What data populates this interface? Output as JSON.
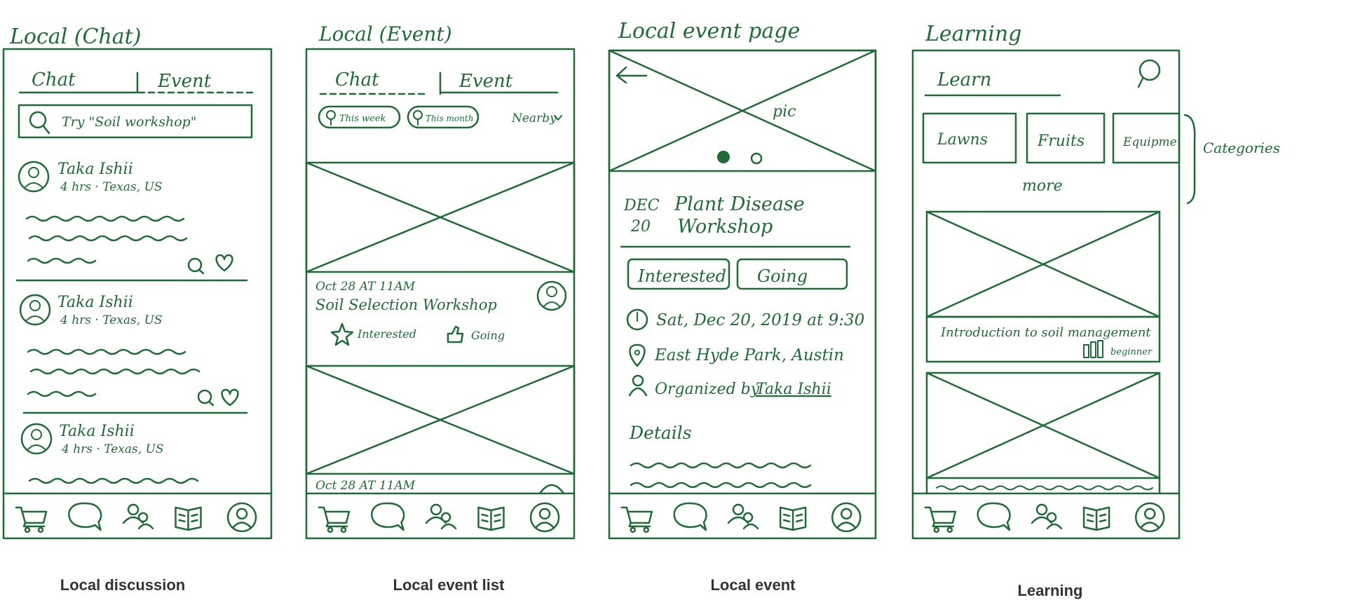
{
  "screens": [
    {
      "title": "Local (Chat)",
      "caption": "Local discussion",
      "tabs": [
        "Chat",
        "Event"
      ],
      "search_placeholder": "Try \"Soil workshop\"",
      "posts": [
        {
          "name": "Taka Ishii",
          "meta": "4 hrs · Texas, US"
        },
        {
          "name": "Taka Ishii",
          "meta": "4 hrs · Texas, US"
        },
        {
          "name": "Taka Ishii",
          "meta": "4 hrs · Texas, US"
        }
      ]
    },
    {
      "title": "Local (Event)",
      "caption": "Local event list",
      "tabs": [
        "Chat",
        "Event"
      ],
      "filters": [
        "This week",
        "This month"
      ],
      "nearby": "Nearby",
      "events": [
        {
          "date": "Oct 28  AT 11AM",
          "name": "Soil Selection Workshop",
          "interested": "Interested",
          "going": "Going"
        },
        {
          "date": "Oct 28  AT 11AM"
        }
      ]
    },
    {
      "title": "Local event page",
      "caption": "Local event",
      "pic_label": "pic",
      "date_badge": {
        "month": "DEC",
        "day": "20"
      },
      "event_title": [
        "Plant Disease",
        "Workshop"
      ],
      "buttons": [
        "Interested",
        "Going"
      ],
      "datetime": "Sat, Dec 20, 2019 at 9:30",
      "location": "East Hyde Park, Austin",
      "organizer_prefix": "Organized by",
      "organizer": "Taka Ishii",
      "details_label": "Details"
    },
    {
      "title": "Learning",
      "caption": "Learning",
      "search_label": "Learn",
      "categories": [
        "Lawns",
        "Fruits",
        "Equipme"
      ],
      "more": "more",
      "categories_note": "Categories",
      "course_title": "Introduction to soil management",
      "course_level": "beginner"
    }
  ],
  "nav_icons": [
    "cart-icon",
    "chat-bubble-icon",
    "community-icon",
    "book-icon",
    "profile-icon"
  ],
  "colors": {
    "ink": "#1f6b38",
    "caption": "#333333",
    "background": "#ffffff"
  }
}
